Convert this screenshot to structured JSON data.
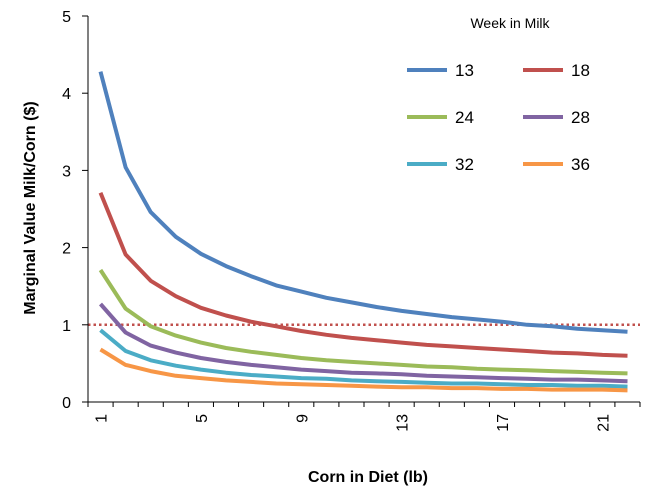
{
  "chart_data": {
    "type": "line",
    "title": "",
    "xlabel": "Corn in Diet (lb)",
    "ylabel": "Marginal Value Milk/Corn ($)",
    "x": [
      1,
      2,
      3,
      4,
      5,
      6,
      7,
      8,
      9,
      10,
      11,
      12,
      13,
      14,
      15,
      16,
      17,
      18,
      19,
      20,
      21,
      22
    ],
    "x_tick_labels": [
      "1",
      "5",
      "9",
      "13",
      "17",
      "21"
    ],
    "y_tick_labels": [
      "0",
      "1",
      "2",
      "3",
      "4",
      "5"
    ],
    "ylim": [
      0,
      5
    ],
    "xlim": [
      1,
      22
    ],
    "grid": false,
    "legend_title": "Week in Milk",
    "legend_position": "top-right",
    "reference_line": {
      "y": 1.0,
      "style": "dotted",
      "color": "#C0504D"
    },
    "series": [
      {
        "name": "13",
        "color": "#4F81BD",
        "values": [
          4.28,
          3.04,
          2.46,
          2.14,
          1.92,
          1.76,
          1.63,
          1.51,
          1.43,
          1.35,
          1.29,
          1.23,
          1.18,
          1.14,
          1.1,
          1.07,
          1.04,
          1.0,
          0.98,
          0.95,
          0.93,
          0.91
        ]
      },
      {
        "name": "18",
        "color": "#C0504D",
        "values": [
          2.71,
          1.91,
          1.57,
          1.37,
          1.22,
          1.12,
          1.04,
          0.98,
          0.92,
          0.87,
          0.83,
          0.8,
          0.77,
          0.74,
          0.72,
          0.7,
          0.68,
          0.66,
          0.64,
          0.63,
          0.61,
          0.6
        ]
      },
      {
        "name": "24",
        "color": "#9BBB59",
        "values": [
          1.71,
          1.21,
          0.98,
          0.86,
          0.77,
          0.7,
          0.65,
          0.61,
          0.57,
          0.54,
          0.52,
          0.5,
          0.48,
          0.46,
          0.45,
          0.43,
          0.42,
          0.41,
          0.4,
          0.39,
          0.38,
          0.37
        ]
      },
      {
        "name": "28",
        "color": "#8064A2",
        "values": [
          1.27,
          0.9,
          0.73,
          0.64,
          0.57,
          0.52,
          0.48,
          0.45,
          0.42,
          0.4,
          0.38,
          0.37,
          0.36,
          0.34,
          0.33,
          0.32,
          0.31,
          0.3,
          0.29,
          0.29,
          0.28,
          0.27
        ]
      },
      {
        "name": "32",
        "color": "#4BACC6",
        "values": [
          0.93,
          0.66,
          0.54,
          0.47,
          0.42,
          0.38,
          0.35,
          0.33,
          0.31,
          0.3,
          0.28,
          0.27,
          0.26,
          0.25,
          0.24,
          0.24,
          0.23,
          0.22,
          0.22,
          0.21,
          0.21,
          0.2
        ]
      },
      {
        "name": "36",
        "color": "#F79646",
        "values": [
          0.68,
          0.48,
          0.4,
          0.34,
          0.31,
          0.28,
          0.26,
          0.24,
          0.23,
          0.22,
          0.21,
          0.2,
          0.19,
          0.19,
          0.18,
          0.18,
          0.17,
          0.17,
          0.16,
          0.16,
          0.16,
          0.15
        ]
      }
    ]
  }
}
